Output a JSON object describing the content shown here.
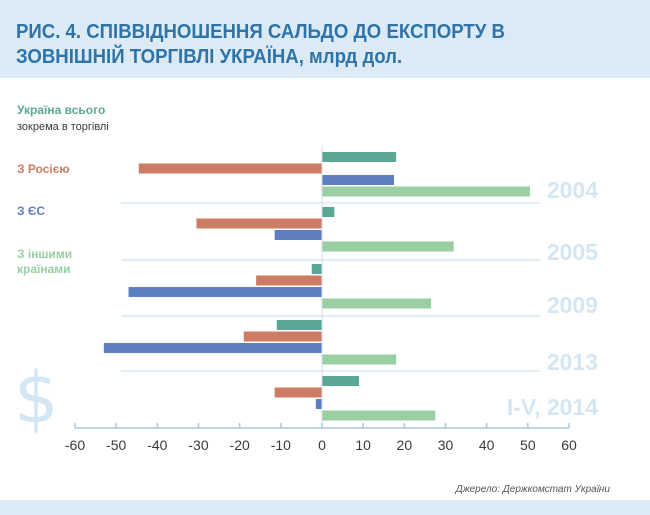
{
  "title": "РИС. 4. СПІВВІДНОШЕННЯ САЛЬДО ДО ЕКСПОРТУ В ЗОВНІШНІЙ ТОРГІВЛІ УКРАЇНА, млрд дол.",
  "source": "Джерело: Держкомстат України",
  "colors": {
    "accent": "#2e74a8",
    "header_bg": "#dbeaf5",
    "year_label": "#d5e6f3",
    "ukraine_total": "#5aa796",
    "russia": "#cc7c63",
    "eu": "#5e7fbf",
    "others": "#99cfa2"
  },
  "chart_data": {
    "type": "bar",
    "orientation": "horizontal",
    "title": "РИС. 4. СПІВВІДНОШЕННЯ САЛЬДО ДО ЕКСПОРТУ В ЗОВНІШНІЙ ТОРГІВЛІ УКРАЇНА, млрд дол.",
    "legend_header": [
      "Україна всього",
      "зокрема в торгівлі"
    ],
    "categories": [
      "2004",
      "2005",
      "2009",
      "2013",
      "I-V, 2014"
    ],
    "series": [
      {
        "name": "Україна всього",
        "color": "#5aa796",
        "values": [
          18,
          3,
          -2.5,
          -11,
          9
        ]
      },
      {
        "name": "З Росією",
        "color": "#cc7c63",
        "values": [
          -44.5,
          -30.5,
          -16,
          -19,
          -11.5
        ]
      },
      {
        "name": "З ЄС",
        "color": "#5e7fbf",
        "values": [
          17.5,
          -11.5,
          -47,
          -53,
          -1.5
        ]
      },
      {
        "name": "З іншими країнами",
        "color": "#99cfa2",
        "values": [
          50.5,
          32,
          26.5,
          18,
          27.5
        ]
      }
    ],
    "xlim": [
      -60,
      60
    ],
    "xticks": [
      "-60",
      "-50",
      "-40",
      "-30",
      "-20",
      "-10",
      "0",
      "10",
      "20",
      "30",
      "40",
      "50",
      "60"
    ],
    "xlabel": "",
    "ylabel": "",
    "grid": false,
    "legend_position": "left"
  }
}
